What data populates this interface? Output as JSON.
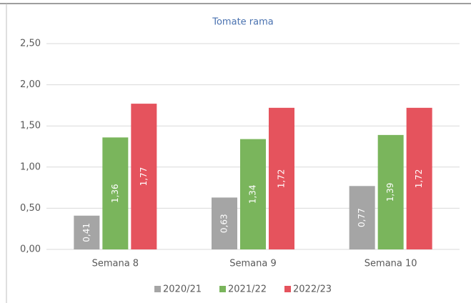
{
  "chart_data": {
    "type": "bar",
    "title": "Tomate rama",
    "categories": [
      "Semana 8",
      "Semana 9",
      "Semana 10"
    ],
    "series": [
      {
        "name": "2020/21",
        "color": "#a5a5a5",
        "values": [
          0.41,
          0.63,
          0.77
        ],
        "value_labels": [
          "0,41",
          "0,63",
          "0,77"
        ]
      },
      {
        "name": "2021/22",
        "color": "#7ab55c",
        "values": [
          1.36,
          1.34,
          1.39
        ],
        "value_labels": [
          "1,36",
          "1,34",
          "1,39"
        ]
      },
      {
        "name": "2022/23",
        "color": "#e5535d",
        "values": [
          1.77,
          1.72,
          1.72
        ],
        "value_labels": [
          "1,77",
          "1,72",
          "1,72"
        ]
      }
    ],
    "ylim": [
      0,
      2.5
    ],
    "yticks": [
      {
        "value": 0,
        "label": "0,00"
      },
      {
        "value": 0.5,
        "label": "0,50"
      },
      {
        "value": 1,
        "label": "1,00"
      },
      {
        "value": 1.5,
        "label": "1,50"
      },
      {
        "value": 2,
        "label": "2,00"
      },
      {
        "value": 2.5,
        "label": "2,50"
      }
    ],
    "grid": true,
    "legend": "bottom"
  }
}
